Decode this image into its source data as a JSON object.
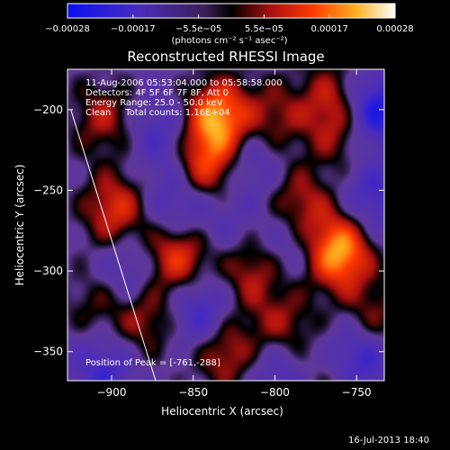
{
  "chart_data": {
    "type": "heatmap",
    "title": "Reconstructed RHESSI Image",
    "xlabel": "Heliocentric X (arcsec)",
    "ylabel": "Heliocentric Y (arcsec)",
    "xlim": [
      -927,
      -733
    ],
    "ylim": [
      -368,
      -175
    ],
    "xticks": [
      -900,
      -850,
      -800,
      -750
    ],
    "yticks": [
      -350,
      -300,
      -250,
      -200
    ],
    "colorbar": {
      "min": -0.00028,
      "max": 0.00028,
      "ticks": [
        "-0.00028",
        "-0.00017",
        "-5.5e-05",
        "5.5e-05",
        "0.00017",
        "0.00028"
      ],
      "unit_label": "(photons cm⁻² s⁻¹ asec⁻²)",
      "colors": [
        "#1010e6",
        "#5b2db0",
        "#7a3aa8",
        "#000000",
        "#b81010",
        "#ff5a00",
        "#ffd02a",
        "#ffffff"
      ]
    },
    "annotations": {
      "time": "11-Aug-2006 05:53:04.000 to 05:58:58.000",
      "detectors": "Detectors: 4F 5F 6F 7F 8F, Att 0",
      "energy": "Energy Range: 25.0 - 50.0 keV",
      "clean": "Clean     Total counts: 1.16E+04",
      "peak": "Position of Peak = [-761,-288]"
    },
    "peak": {
      "x": -761,
      "y": -288
    },
    "sources": [
      {
        "x": -761,
        "y": -288,
        "v": 0.00028
      },
      {
        "x": -835,
        "y": -205,
        "v": 0.00026
      },
      {
        "x": -842,
        "y": -235,
        "v": 0.00018
      },
      {
        "x": -860,
        "y": -290,
        "v": 0.0002
      },
      {
        "x": -898,
        "y": -262,
        "v": 0.00017
      },
      {
        "x": -905,
        "y": -205,
        "v": 0.00012
      },
      {
        "x": -800,
        "y": -205,
        "v": 0.00011
      },
      {
        "x": -760,
        "y": -215,
        "v": 0.0001
      },
      {
        "x": -785,
        "y": -260,
        "v": 0.00015
      },
      {
        "x": -815,
        "y": -300,
        "v": 0.00013
      },
      {
        "x": -830,
        "y": -350,
        "v": 0.00015
      },
      {
        "x": -880,
        "y": -330,
        "v": 0.00012
      },
      {
        "x": -795,
        "y": -335,
        "v": 0.00012
      },
      {
        "x": -740,
        "y": -330,
        "v": 0.00011
      },
      {
        "x": -910,
        "y": -320,
        "v": 8e-05
      },
      {
        "x": -760,
        "y": -365,
        "v": 0.0001
      },
      {
        "x": -765,
        "y": -192,
        "v": 0.00012
      },
      {
        "x": -860,
        "y": -260,
        "v": -0.00012
      },
      {
        "x": -815,
        "y": -230,
        "v": -0.0001
      },
      {
        "x": -740,
        "y": -200,
        "v": -0.0002
      },
      {
        "x": -750,
        "y": -355,
        "v": -0.0002
      },
      {
        "x": -845,
        "y": -325,
        "v": -0.00014
      },
      {
        "x": -890,
        "y": -300,
        "v": -0.0001
      },
      {
        "x": -905,
        "y": -360,
        "v": -0.00012
      },
      {
        "x": -790,
        "y": -280,
        "v": -0.0001
      },
      {
        "x": -870,
        "y": -215,
        "v": -0.0001
      },
      {
        "x": -800,
        "y": -360,
        "v": -0.0001
      },
      {
        "x": -740,
        "y": -255,
        "v": -0.00012
      },
      {
        "x": -830,
        "y": -270,
        "v": -6e-05
      }
    ],
    "limb_line": [
      [
        -925,
        -200
      ],
      [
        -873,
        -368
      ]
    ]
  },
  "footer": {
    "date": "16-Jul-2013 18:40"
  }
}
